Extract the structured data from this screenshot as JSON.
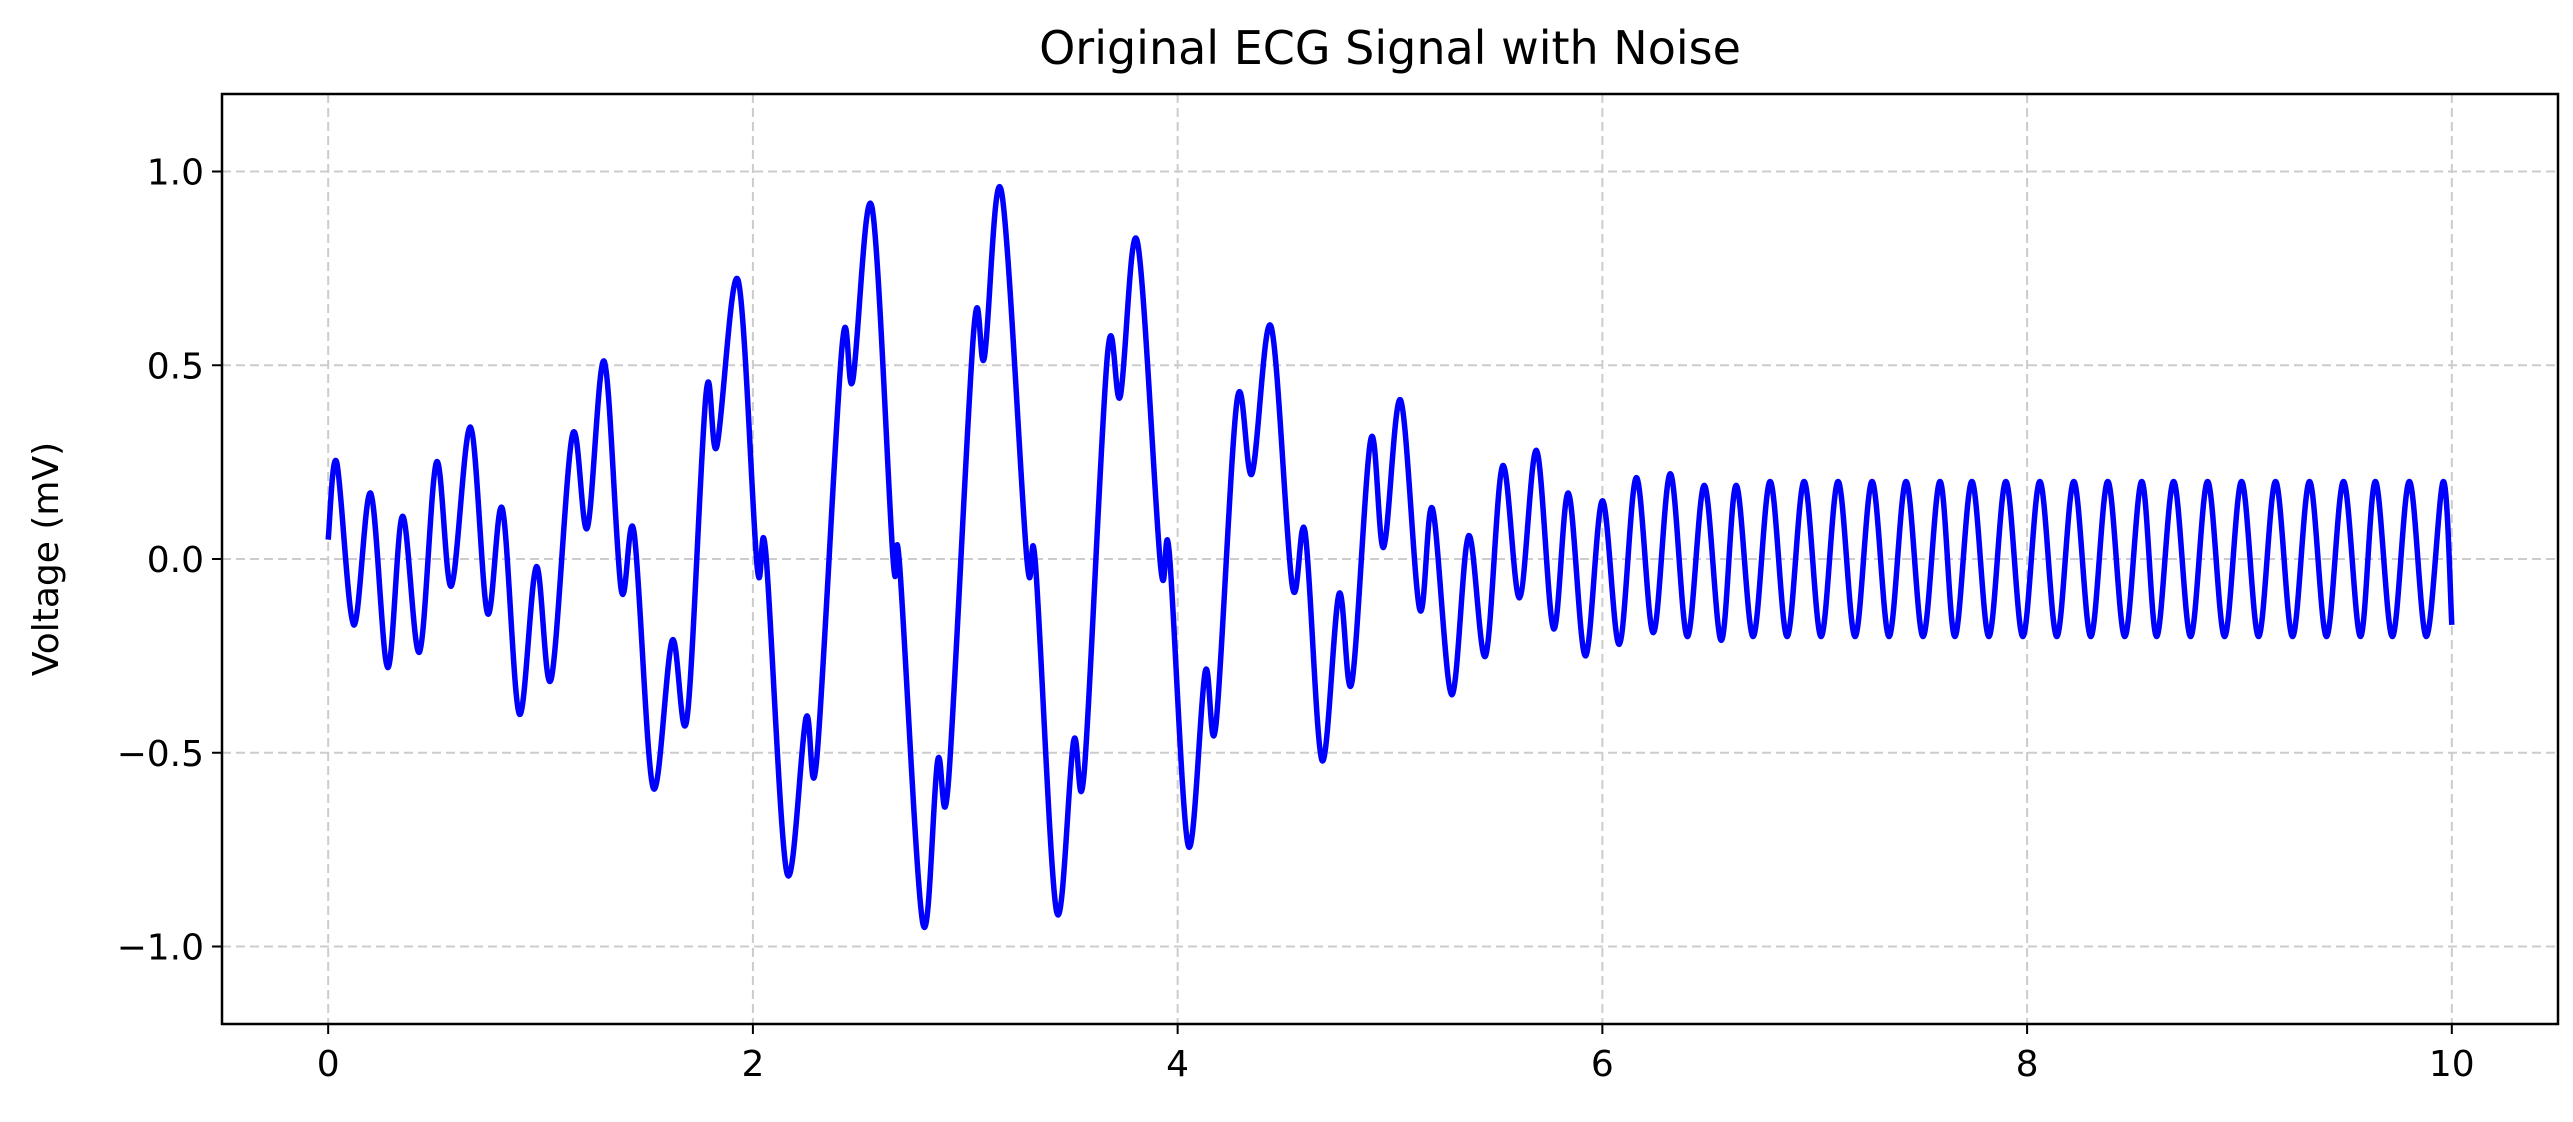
{
  "chart_data": {
    "type": "line",
    "title": "Original ECG Signal with Noise",
    "xlabel": "",
    "ylabel": "Voltage (mV)",
    "xlim": [
      -0.5,
      10.5
    ],
    "ylim": [
      -1.2,
      1.2
    ],
    "x_ticks": [
      0,
      2,
      4,
      6,
      8,
      10
    ],
    "y_ticks": [
      -1.0,
      -0.5,
      0.0,
      0.5,
      1.0
    ],
    "x_tick_labels": [
      "0",
      "2",
      "4",
      "6",
      "8",
      "10"
    ],
    "y_tick_labels": [
      "−1.0",
      "−0.5",
      "0.0",
      "0.5",
      "1.0"
    ],
    "grid": true,
    "legend": "none",
    "colors": {
      "line": "#0000ff",
      "grid": "#cccccc",
      "axes": "#000000"
    },
    "series": [
      {
        "color": "#0000ff",
        "sampling": "extrema of the signal, connected by a smooth curve",
        "points": [
          [
            0.0,
            0.05
          ],
          [
            0.04,
            0.25
          ],
          [
            0.12,
            -0.17
          ],
          [
            0.2,
            0.17
          ],
          [
            0.28,
            -0.28
          ],
          [
            0.35,
            0.11
          ],
          [
            0.43,
            -0.24
          ],
          [
            0.51,
            0.25
          ],
          [
            0.58,
            -0.07
          ],
          [
            0.67,
            0.34
          ],
          [
            0.75,
            -0.14
          ],
          [
            0.82,
            0.13
          ],
          [
            0.9,
            -0.4
          ],
          [
            0.98,
            -0.02
          ],
          [
            1.05,
            -0.31
          ],
          [
            1.15,
            0.32
          ],
          [
            1.22,
            0.08
          ],
          [
            1.3,
            0.51
          ],
          [
            1.38,
            -0.08
          ],
          [
            1.44,
            0.07
          ],
          [
            1.53,
            -0.59
          ],
          [
            1.62,
            -0.21
          ],
          [
            1.69,
            -0.41
          ],
          [
            1.78,
            0.43
          ],
          [
            1.83,
            0.29
          ],
          [
            1.93,
            0.72
          ],
          [
            2.02,
            -0.02
          ],
          [
            2.06,
            0.02
          ],
          [
            2.16,
            -0.81
          ],
          [
            2.25,
            -0.41
          ],
          [
            2.3,
            -0.52
          ],
          [
            2.42,
            0.55
          ],
          [
            2.47,
            0.46
          ],
          [
            2.56,
            0.91
          ],
          [
            2.66,
            0.0
          ],
          [
            2.69,
            -0.01
          ],
          [
            2.8,
            -0.94
          ],
          [
            2.87,
            -0.52
          ],
          [
            2.92,
            -0.58
          ],
          [
            3.04,
            0.59
          ],
          [
            3.09,
            0.52
          ],
          [
            3.17,
            0.95
          ],
          [
            3.29,
            0.0
          ],
          [
            3.33,
            -0.01
          ],
          [
            3.43,
            -0.91
          ],
          [
            3.51,
            -0.47
          ],
          [
            3.56,
            -0.55
          ],
          [
            3.67,
            0.53
          ],
          [
            3.73,
            0.42
          ],
          [
            3.81,
            0.82
          ],
          [
            3.92,
            -0.02
          ],
          [
            3.96,
            0.02
          ],
          [
            4.05,
            -0.74
          ],
          [
            4.13,
            -0.29
          ],
          [
            4.18,
            -0.43
          ],
          [
            4.28,
            0.41
          ],
          [
            4.35,
            0.22
          ],
          [
            4.44,
            0.6
          ],
          [
            4.54,
            -0.07
          ],
          [
            4.6,
            0.07
          ],
          [
            4.68,
            -0.52
          ],
          [
            4.76,
            -0.09
          ],
          [
            4.82,
            -0.32
          ],
          [
            4.91,
            0.31
          ],
          [
            4.97,
            0.03
          ],
          [
            5.05,
            0.41
          ],
          [
            5.14,
            -0.13
          ],
          [
            5.2,
            0.13
          ],
          [
            5.29,
            -0.35
          ],
          [
            5.37,
            0.06
          ],
          [
            5.45,
            -0.25
          ],
          [
            5.53,
            0.24
          ],
          [
            5.61,
            -0.1
          ],
          [
            5.69,
            0.28
          ],
          [
            5.77,
            -0.18
          ],
          [
            5.84,
            0.17
          ],
          [
            5.92,
            -0.25
          ],
          [
            6.0,
            0.15
          ],
          [
            6.08,
            -0.22
          ],
          [
            6.16,
            0.21
          ],
          [
            6.24,
            -0.19
          ],
          [
            6.32,
            0.22
          ],
          [
            6.4,
            -0.2
          ],
          [
            6.48,
            0.19
          ],
          [
            6.56,
            -0.21
          ],
          [
            6.63,
            0.19
          ],
          [
            6.71,
            -0.2
          ],
          [
            6.79,
            0.2
          ],
          [
            6.87,
            -0.2
          ],
          [
            6.95,
            0.2
          ],
          [
            7.03,
            -0.2
          ],
          [
            7.11,
            0.2
          ],
          [
            7.19,
            -0.2
          ],
          [
            7.27,
            0.2
          ],
          [
            7.35,
            -0.2
          ],
          [
            7.43,
            0.2
          ],
          [
            7.51,
            -0.2
          ],
          [
            7.59,
            0.2
          ],
          [
            7.66,
            -0.2
          ],
          [
            7.74,
            0.2
          ],
          [
            7.82,
            -0.2
          ],
          [
            7.9,
            0.2
          ],
          [
            7.98,
            -0.2
          ],
          [
            8.06,
            0.2
          ],
          [
            8.14,
            -0.2
          ],
          [
            8.22,
            0.2
          ],
          [
            8.3,
            -0.2
          ],
          [
            8.38,
            0.2
          ],
          [
            8.46,
            -0.2
          ],
          [
            8.54,
            0.2
          ],
          [
            8.61,
            -0.2
          ],
          [
            8.69,
            0.2
          ],
          [
            8.77,
            -0.2
          ],
          [
            8.85,
            0.2
          ],
          [
            8.93,
            -0.2
          ],
          [
            9.01,
            0.2
          ],
          [
            9.09,
            -0.2
          ],
          [
            9.17,
            0.2
          ],
          [
            9.25,
            -0.2
          ],
          [
            9.33,
            0.2
          ],
          [
            9.41,
            -0.2
          ],
          [
            9.49,
            0.2
          ],
          [
            9.57,
            -0.2
          ],
          [
            9.64,
            0.2
          ],
          [
            9.72,
            -0.2
          ],
          [
            9.8,
            0.2
          ],
          [
            9.88,
            -0.2
          ],
          [
            9.96,
            0.2
          ],
          [
            10.0,
            -0.17
          ]
        ]
      }
    ]
  }
}
